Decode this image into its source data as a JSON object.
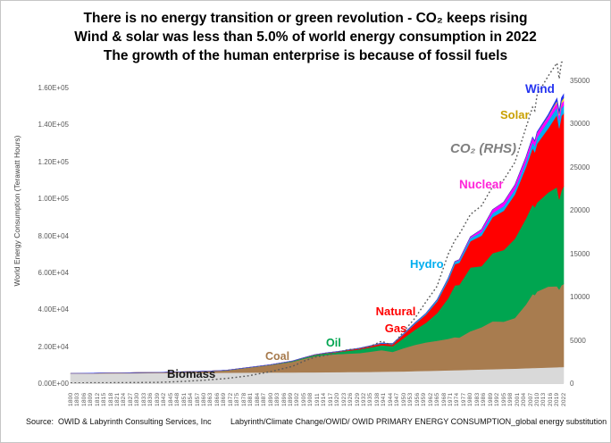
{
  "title": {
    "line1": "There is no energy transition or green revolution - CO₂ keeps rising",
    "line2": "Wind & solar was less than 5.0% of world energy consumption in 2022",
    "line3": "The growth of the human enterprise is because of fossil fuels"
  },
  "y_axis": {
    "title": "World Energy Consumption (Terawatt Hours)",
    "ticks": [
      "0.00E+00",
      "2.00E+04",
      "4.00E+04",
      "6.00E+04",
      "8.00E+04",
      "1.00E+05",
      "1.20E+05",
      "1.40E+05",
      "1.60E+05"
    ]
  },
  "y2_axis": {
    "ticks": [
      "0",
      "5000",
      "10000",
      "15000",
      "20000",
      "25000",
      "30000",
      "35000"
    ]
  },
  "annotations": {
    "wind": "Wind",
    "solar": "Solar",
    "co2": "CO₂ (RHS)",
    "nuclear": "Nuclear",
    "hydro": "Hydro",
    "natural": "Natural",
    "gas": "Gas",
    "oil": "Oil",
    "coal": "Coal",
    "biomass": "Biomass"
  },
  "footer": {
    "source": "Source:  OWID & Labyrinth Consulting Services, Inc",
    "path": "Labyrinth/Climate Change/OWID/ OWID PRIMARY ENERGY CONSUMPTION_global energy substitution"
  },
  "colors": {
    "wind": "#2433F0",
    "solar": "#C9A000",
    "co2": "#808080",
    "nuclear": "#FF26D9",
    "hydro": "#00AEEF",
    "natural_gas": "#FF0000",
    "oil": "#00A550",
    "coal": "#A6794B",
    "biomass": "#1A1A1A",
    "axis_text": "#595959",
    "co2_line": "#595959"
  },
  "chart_data": {
    "type": "area",
    "stacked": true,
    "x_range": [
      1800,
      2022
    ],
    "x_label_step": 3,
    "grid": false,
    "legend": "inline-annotations",
    "y_left": {
      "label": "World Energy Consumption (Terawatt Hours)",
      "min": 0,
      "max": 160000,
      "tick_step": 20000,
      "format": "scientific"
    },
    "y_right": {
      "label": "CO2 (RHS)",
      "min": 0,
      "max": 35000,
      "tick_step": 5000
    },
    "x_years": [
      1800,
      1810,
      1820,
      1830,
      1840,
      1850,
      1860,
      1870,
      1880,
      1890,
      1900,
      1905,
      1910,
      1915,
      1920,
      1925,
      1930,
      1935,
      1940,
      1945,
      1950,
      1955,
      1960,
      1965,
      1970,
      1973,
      1975,
      1980,
      1985,
      1990,
      1995,
      2000,
      2005,
      2008,
      2009,
      2010,
      2015,
      2019,
      2020,
      2021,
      2022
    ],
    "series": [
      {
        "name": "Biomass",
        "color": "#D9D9D9",
        "values": [
          5200,
          5280,
          5360,
          5430,
          5500,
          5560,
          5620,
          5680,
          5740,
          5800,
          5860,
          5890,
          5920,
          5950,
          5990,
          6030,
          6070,
          6150,
          6250,
          6320,
          6400,
          6520,
          6650,
          6800,
          6950,
          7040,
          7100,
          7280,
          7450,
          7600,
          7750,
          7900,
          8100,
          8220,
          8250,
          8300,
          8500,
          8650,
          8700,
          8750,
          8800
        ]
      },
      {
        "name": "Coal",
        "color": "#A87C4F",
        "values": [
          97,
          140,
          184,
          250,
          356,
          569,
          806,
          1200,
          2600,
          4000,
          5728,
          7300,
          8656,
          9300,
          9700,
          10000,
          10208,
          10900,
          11700,
          10600,
          12603,
          14200,
          15442,
          16140,
          17075,
          17900,
          17588,
          20858,
          22800,
          25905,
          25541,
          27370,
          34482,
          40000,
          39500,
          41350,
          43786,
          43849,
          42059,
          44268,
          44854
        ]
      },
      {
        "name": "Oil",
        "color": "#00A550",
        "values": [
          0,
          0,
          0,
          0,
          0,
          2,
          9,
          60,
          120,
          150,
          350,
          500,
          700,
          900,
          1100,
          1500,
          1935,
          2300,
          2655,
          3100,
          5444,
          8200,
          10564,
          15000,
          22000,
          28000,
          28500,
          34477,
          33085,
          36889,
          38771,
          42881,
          46484,
          48500,
          47500,
          48104,
          50893,
          53619,
          48712,
          51170,
          52970
        ]
      },
      {
        "name": "Natural Gas",
        "color": "#FF0000",
        "values": [
          0,
          0,
          0,
          0,
          0,
          0,
          0,
          0,
          30,
          50,
          64,
          100,
          140,
          190,
          244,
          420,
          606,
          750,
          871,
          1100,
          2092,
          3200,
          4472,
          6306,
          9614,
          11500,
          11900,
          14243,
          16500,
          19484,
          21300,
          24000,
          27700,
          30500,
          29800,
          31800,
          34700,
          39100,
          38500,
          40400,
          39413
        ]
      },
      {
        "name": "Hydro",
        "color": "#00B0F0",
        "values": [
          0,
          0,
          0,
          0,
          0,
          0,
          0,
          0,
          5,
          10,
          17,
          25,
          35,
          50,
          70,
          100,
          130,
          170,
          210,
          270,
          340,
          500,
          690,
          920,
          1150,
          1250,
          1400,
          1700,
          1950,
          2150,
          2450,
          2650,
          2900,
          3200,
          3250,
          3400,
          3880,
          4222,
          4345,
          4274,
          4311
        ]
      },
      {
        "name": "Nuclear",
        "color": "#FF00FF",
        "values": [
          0,
          0,
          0,
          0,
          0,
          0,
          0,
          0,
          0,
          0,
          0,
          0,
          0,
          0,
          0,
          0,
          0,
          0,
          0,
          0,
          0,
          0,
          0,
          26,
          79,
          203,
          370,
          684,
          1425,
          1900,
          2210,
          2450,
          2626,
          2600,
          2560,
          2630,
          2441,
          2657,
          2553,
          2653,
          2679
        ]
      },
      {
        "name": "Solar",
        "color": "#FFFF00",
        "values": [
          0,
          0,
          0,
          0,
          0,
          0,
          0,
          0,
          0,
          0,
          0,
          0,
          0,
          0,
          0,
          0,
          0,
          0,
          0,
          0,
          0,
          0,
          0,
          0,
          0,
          0,
          0,
          0,
          0,
          0,
          0,
          1,
          4,
          12,
          20,
          34,
          256,
          706,
          846,
          1049,
          1310
        ]
      },
      {
        "name": "Wind",
        "color": "#2433F0",
        "values": [
          0,
          0,
          0,
          0,
          0,
          0,
          0,
          0,
          0,
          0,
          0,
          0,
          0,
          0,
          0,
          0,
          0,
          0,
          0,
          0,
          0,
          0,
          0,
          0,
          0,
          0,
          0,
          0,
          0,
          4,
          8,
          31,
          104,
          220,
          276,
          346,
          831,
          1429,
          1596,
          1862,
          2104
        ]
      }
    ],
    "co2_line": {
      "name": "CO₂ (RHS)",
      "axis": "right",
      "style": "dotted",
      "color": "#595959",
      "values": [
        30,
        40,
        54,
        72,
        96,
        197,
        339,
        534,
        847,
        1337,
        1952,
        2535,
        3000,
        3200,
        3520,
        3880,
        3940,
        4250,
        4850,
        4350,
        6000,
        7500,
        9400,
        11200,
        14900,
        16500,
        17200,
        19500,
        20500,
        22700,
        23500,
        25500,
        29500,
        31900,
        31500,
        33300,
        35500,
        37000,
        35200,
        37100,
        37150
      ]
    }
  }
}
